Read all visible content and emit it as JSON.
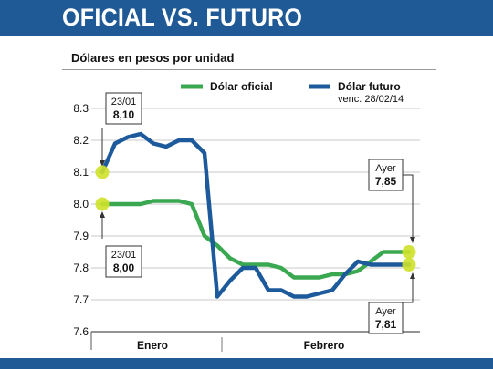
{
  "header": {
    "title": "OFICIAL VS. FUTURO"
  },
  "subtitle": "Dólares en pesos por unidad",
  "colors": {
    "oficial": "#3aa850",
    "futuro": "#1c5a9c",
    "highlight": "#cfe12a",
    "header": "#1f5a96"
  },
  "legend": {
    "oficial_label": "Dólar oficial",
    "futuro_label": "Dólar futuro",
    "futuro_note": "venc. 28/02/14"
  },
  "callouts": {
    "top_left_date": "23/01",
    "top_left_value": "8,10",
    "bottom_left_date": "23/01",
    "bottom_left_value": "8,00",
    "top_right_label": "Ayer",
    "top_right_value": "7,85",
    "bottom_right_label": "Ayer",
    "bottom_right_value": "7,81"
  },
  "chart_data": {
    "type": "line",
    "x": [
      1,
      2,
      3,
      4,
      5,
      6,
      7,
      8,
      9,
      10,
      11,
      12,
      13,
      14,
      15,
      16,
      17,
      18,
      19,
      20,
      21,
      22,
      23,
      24,
      25
    ],
    "x_groups": [
      "Enero",
      "Febrero"
    ],
    "ylim": [
      7.6,
      8.3
    ],
    "yticks": [
      "7.6",
      "7.7",
      "7.8",
      "7.9",
      "8.0",
      "8.1",
      "8.2",
      "8.3"
    ],
    "grid": true,
    "legend_position": "top",
    "series": [
      {
        "name": "Dólar oficial",
        "values": [
          8.0,
          8.0,
          8.0,
          8.0,
          8.01,
          8.01,
          8.01,
          8.0,
          7.9,
          7.87,
          7.83,
          7.81,
          7.81,
          7.81,
          7.8,
          7.77,
          7.77,
          7.77,
          7.78,
          7.78,
          7.79,
          7.82,
          7.85,
          7.85,
          7.85
        ]
      },
      {
        "name": "Dólar futuro",
        "values": [
          8.1,
          8.19,
          8.21,
          8.22,
          8.19,
          8.18,
          8.2,
          8.2,
          8.16,
          7.71,
          7.76,
          7.8,
          7.8,
          7.73,
          7.73,
          7.71,
          7.71,
          7.72,
          7.73,
          7.78,
          7.82,
          7.81,
          7.81,
          7.81,
          7.81
        ]
      }
    ]
  }
}
